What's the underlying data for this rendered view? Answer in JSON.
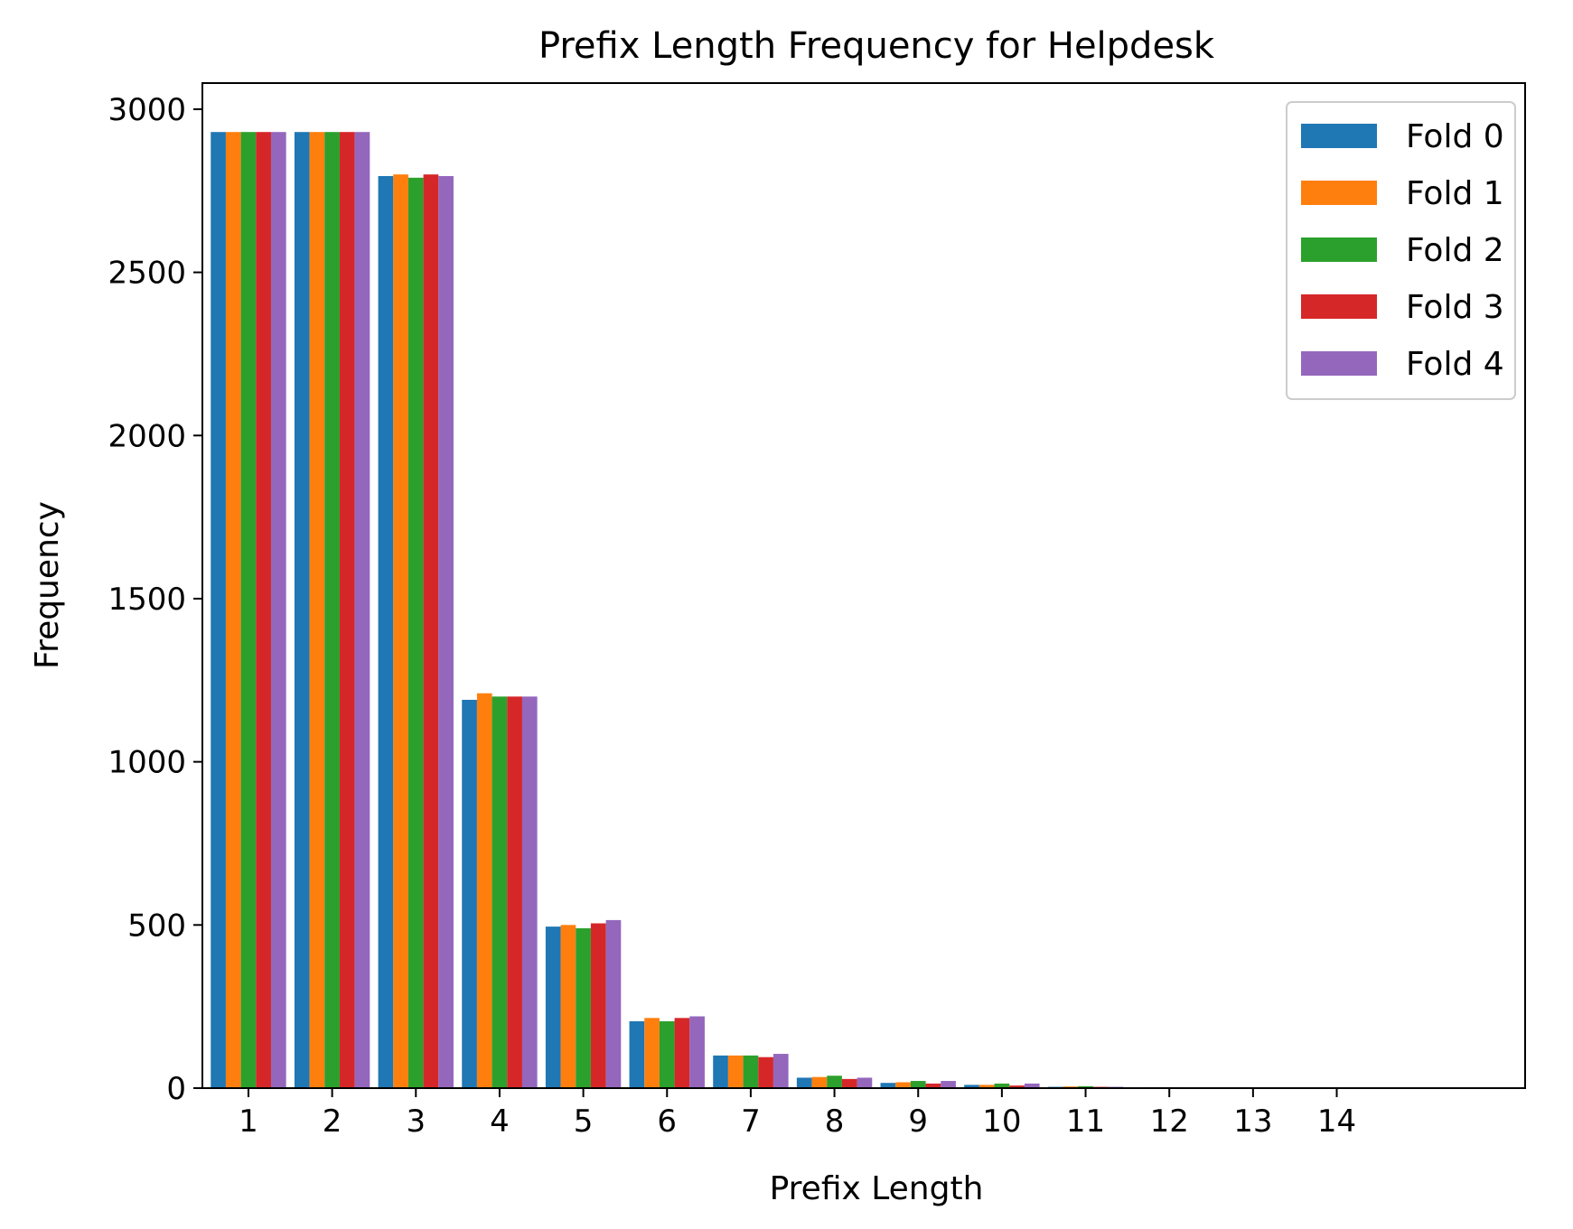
{
  "chart_data": {
    "type": "bar",
    "title": "Prefix Length Frequency for Helpdesk",
    "xlabel": "Prefix Length",
    "ylabel": "Frequency",
    "categories": [
      "1",
      "2",
      "3",
      "4",
      "5",
      "6",
      "7",
      "8",
      "9",
      "10",
      "11",
      "12",
      "13",
      "14"
    ],
    "ylim": [
      0,
      3080
    ],
    "yticks": [
      0,
      500,
      1000,
      1500,
      2000,
      2500,
      3000
    ],
    "grid": false,
    "legend_position": "top-right",
    "series": [
      {
        "name": "Fold 0",
        "color": "#1f77b4",
        "values": [
          2930,
          2930,
          2795,
          1190,
          495,
          205,
          100,
          32,
          16,
          10,
          4,
          2,
          1,
          1
        ]
      },
      {
        "name": "Fold 1",
        "color": "#ff7f0e",
        "values": [
          2930,
          2930,
          2800,
          1210,
          500,
          215,
          100,
          34,
          18,
          10,
          5,
          3,
          1,
          0
        ]
      },
      {
        "name": "Fold 2",
        "color": "#2ca02c",
        "values": [
          2930,
          2930,
          2790,
          1200,
          490,
          205,
          100,
          38,
          22,
          14,
          6,
          3,
          1,
          0
        ]
      },
      {
        "name": "Fold 3",
        "color": "#d62728",
        "values": [
          2930,
          2930,
          2800,
          1200,
          505,
          215,
          95,
          28,
          14,
          8,
          4,
          2,
          1,
          0
        ]
      },
      {
        "name": "Fold 4",
        "color": "#9467bd",
        "values": [
          2930,
          2930,
          2795,
          1200,
          515,
          220,
          105,
          32,
          22,
          14,
          4,
          2,
          2,
          1
        ]
      }
    ]
  }
}
